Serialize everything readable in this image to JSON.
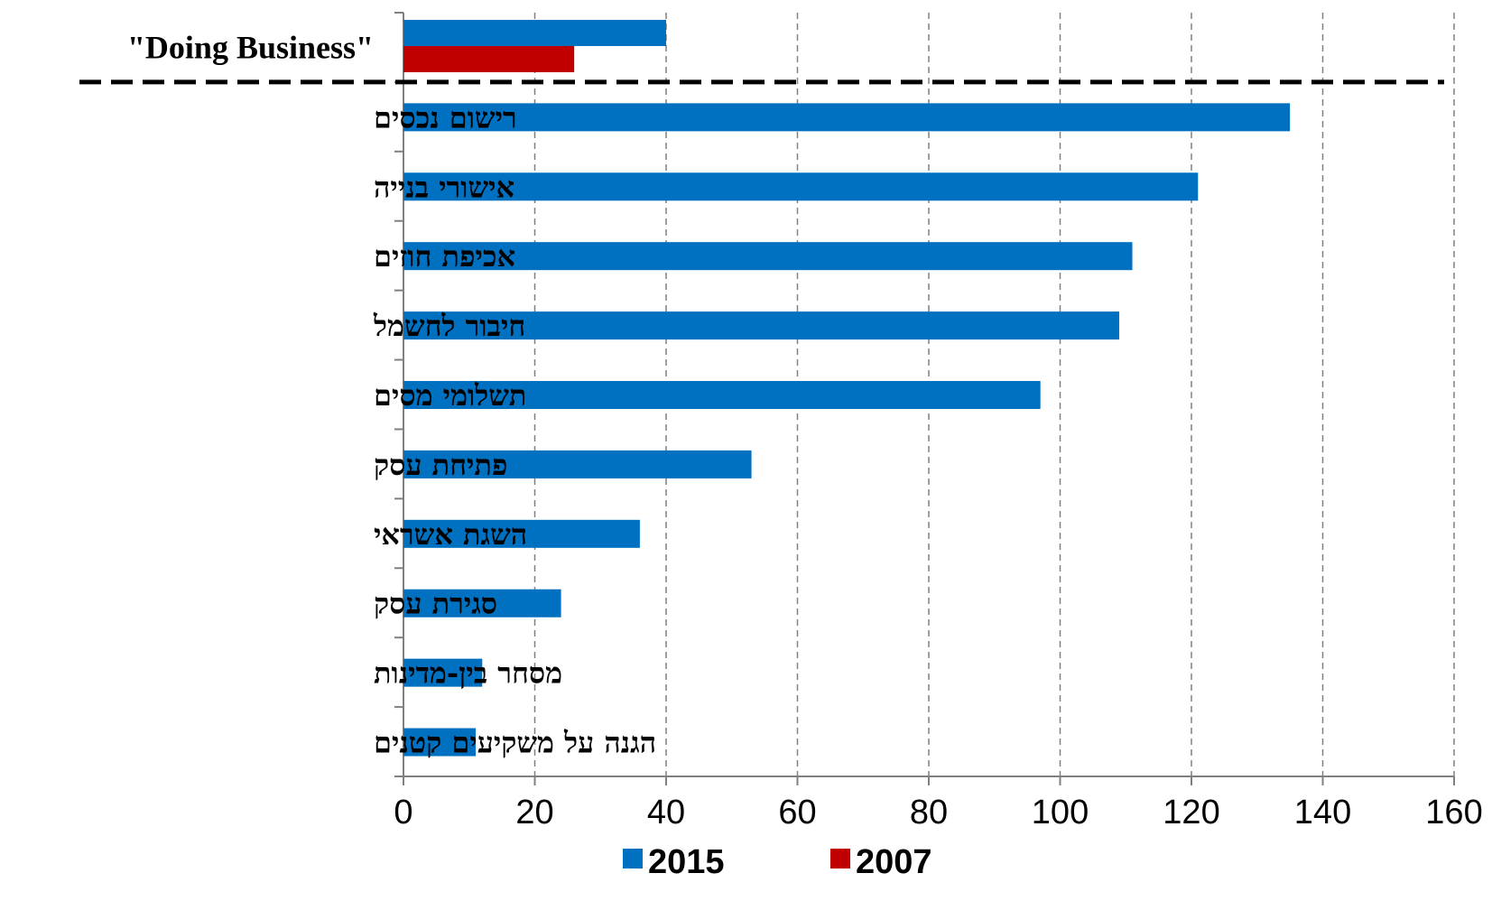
{
  "chart_data": {
    "type": "bar",
    "orientation": "horizontal",
    "categories": [
      "\"Doing Business\"",
      "רישום נכסים",
      "אישורי בנייה",
      "אכיפת חוזים",
      "חיבור לחשמל",
      "תשלומי מסים",
      "פתיחת עסק",
      "השגת אשראי",
      "סגירת עסק",
      "מסחר בין-מדינות",
      "הגנה על משקיעים קטנים"
    ],
    "series": [
      {
        "name": "2015",
        "color": "#0070C0",
        "values": [
          40,
          135,
          121,
          111,
          109,
          97,
          53,
          36,
          24,
          12,
          11
        ]
      },
      {
        "name": "2007",
        "color": "#C00000",
        "values": [
          26,
          null,
          null,
          null,
          null,
          null,
          null,
          null,
          null,
          null,
          null
        ]
      }
    ],
    "xlim": [
      0,
      160
    ],
    "xticks": [
      "0",
      "20",
      "40",
      "60",
      "80",
      "100",
      "120",
      "140",
      "160"
    ],
    "grid": "vertical dashed",
    "separator_after_first_category": true,
    "legend_position": "bottom"
  }
}
